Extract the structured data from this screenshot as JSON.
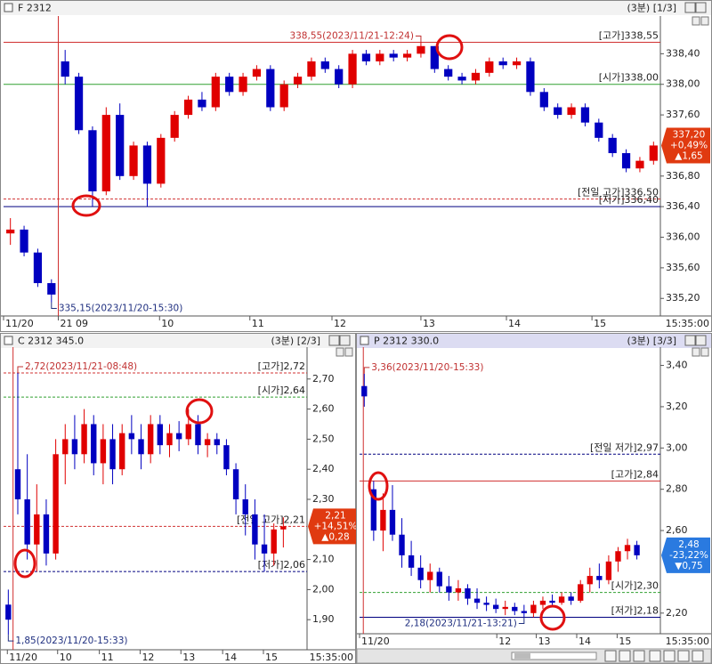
{
  "chart_data": [
    {
      "type": "candlestick",
      "title": "F 2312",
      "period": "(3분) [1/3]",
      "end_label": "15:35:00",
      "up_color": "#e00000",
      "down_color": "#0000c0",
      "xlim": [
        0,
        48
      ],
      "ylim": [
        334.97,
        338.87
      ],
      "xticks": [
        {
          "value": 0,
          "label": "11/20"
        },
        {
          "value": 4,
          "label": "21 09"
        },
        {
          "value": 11.4,
          "label": "10"
        },
        {
          "value": 18,
          "label": "11"
        },
        {
          "value": 24,
          "label": "12"
        },
        {
          "value": 30.5,
          "label": "13"
        },
        {
          "value": 36.75,
          "label": "14"
        },
        {
          "value": 43,
          "label": "15"
        }
      ],
      "yticks": [
        {
          "value": 338.4,
          "label": "338,40"
        },
        {
          "value": 338.0,
          "label": "338,00"
        },
        {
          "value": 337.6,
          "label": "337,60"
        },
        {
          "value": 336.8,
          "label": "336,80"
        },
        {
          "value": 336.4,
          "label": "336,40"
        },
        {
          "value": 336.0,
          "label": "336,00"
        },
        {
          "value": 335.6,
          "label": "335,60"
        },
        {
          "value": 335.2,
          "label": "335,20"
        }
      ],
      "vline": 4,
      "open": [
        336.05,
        336.1,
        335.8,
        335.4,
        338.3,
        338.1,
        337.4,
        336.6,
        337.6,
        336.8,
        337.2,
        336.7,
        337.3,
        337.6,
        337.8,
        337.7,
        338.1,
        337.9,
        338.1,
        338.2,
        337.7,
        338.0,
        338.1,
        338.3,
        338.2,
        338.0,
        338.4,
        338.3,
        338.4,
        338.35,
        338.4,
        338.5,
        338.2,
        338.1,
        338.05,
        338.15,
        338.3,
        338.25,
        338.3,
        337.9,
        337.7,
        337.6,
        337.7,
        337.5,
        337.3,
        337.1,
        336.9,
        337.0
      ],
      "high": [
        336.25,
        336.15,
        335.85,
        335.45,
        338.45,
        338.15,
        337.45,
        337.7,
        337.75,
        337.25,
        337.25,
        337.35,
        337.65,
        337.85,
        337.9,
        338.15,
        338.15,
        338.15,
        338.25,
        338.25,
        338.05,
        338.15,
        338.35,
        338.35,
        338.25,
        338.45,
        338.45,
        338.45,
        338.45,
        338.45,
        338.55,
        338.5,
        338.25,
        338.15,
        338.2,
        338.35,
        338.35,
        338.35,
        338.35,
        337.95,
        337.75,
        337.75,
        337.75,
        337.55,
        337.35,
        337.15,
        337.05,
        337.25
      ],
      "low": [
        335.9,
        335.75,
        335.35,
        335.15,
        338.0,
        337.35,
        336.4,
        336.55,
        336.75,
        336.75,
        336.4,
        336.65,
        337.25,
        337.55,
        337.65,
        337.65,
        337.85,
        337.85,
        338.05,
        337.65,
        337.65,
        337.95,
        338.05,
        338.15,
        337.95,
        337.95,
        338.25,
        338.25,
        338.3,
        338.3,
        338.35,
        338.15,
        338.05,
        338.0,
        338.0,
        338.1,
        338.2,
        338.2,
        337.85,
        337.65,
        337.55,
        337.55,
        337.45,
        337.25,
        337.05,
        336.85,
        336.85,
        336.95
      ],
      "close": [
        336.1,
        335.8,
        335.4,
        335.25,
        338.1,
        337.4,
        336.6,
        337.6,
        336.8,
        337.2,
        336.7,
        337.3,
        337.6,
        337.8,
        337.7,
        338.1,
        337.9,
        338.1,
        338.2,
        337.7,
        338.0,
        338.1,
        338.3,
        338.2,
        338.0,
        338.4,
        338.3,
        338.4,
        338.35,
        338.4,
        338.5,
        338.2,
        338.1,
        338.05,
        338.15,
        338.3,
        338.25,
        338.3,
        337.9,
        337.7,
        337.6,
        337.7,
        337.5,
        337.3,
        337.1,
        336.9,
        337.0,
        337.2
      ],
      "hlines": [
        {
          "value": 338.55,
          "label": "[고가]338,55",
          "color": "#d03030",
          "dash": false
        },
        {
          "value": 338.0,
          "label": "[시가]338,00",
          "color": "#30a030",
          "dash": false
        },
        {
          "value": 336.5,
          "label": "[전일 고가]336,50",
          "color": "#d03030",
          "dash": true
        },
        {
          "value": 336.4,
          "label": "[저가]336,40",
          "color": "#000080",
          "dash": false
        }
      ],
      "annotations": [
        {
          "label": "338,55(2023/11/21-12:24)",
          "value": 338.55,
          "x": 30
        },
        {
          "label": "335,15(2023/11/20-15:30)",
          "value": 335.15,
          "x": 3
        }
      ],
      "last": {
        "value": 337.2,
        "label": [
          "337,20",
          "+0,49%",
          "▲1,65"
        ],
        "color": "#e03a10"
      }
    },
    {
      "type": "candlestick",
      "title": "C 2312 345.0",
      "period": "(3분) [2/3]",
      "end_label": "15:35:00",
      "up_color": "#e00000",
      "down_color": "#0000c0",
      "xlim": [
        0,
        32
      ],
      "ylim": [
        1.8,
        2.8
      ],
      "xticks": [
        {
          "value": 0.4,
          "label": "11/20"
        },
        {
          "value": 5.7,
          "label": "10"
        },
        {
          "value": 10.1,
          "label": "11"
        },
        {
          "value": 14.4,
          "label": "12"
        },
        {
          "value": 18.7,
          "label": "13"
        },
        {
          "value": 23.1,
          "label": "14"
        },
        {
          "value": 27.4,
          "label": "15"
        }
      ],
      "yticks": [
        {
          "value": 2.7,
          "label": "2,70"
        },
        {
          "value": 2.6,
          "label": "2,60"
        },
        {
          "value": 2.5,
          "label": "2,50"
        },
        {
          "value": 2.4,
          "label": "2,40"
        },
        {
          "value": 2.3,
          "label": "2,30"
        },
        {
          "value": 2.1,
          "label": "2,10"
        },
        {
          "value": 2.0,
          "label": "2,00"
        },
        {
          "value": 1.9,
          "label": "1,90"
        }
      ],
      "vline": 1,
      "open": [
        1.95,
        2.4,
        2.3,
        2.15,
        2.25,
        2.12,
        2.45,
        2.5,
        2.45,
        2.55,
        2.42,
        2.5,
        2.4,
        2.52,
        2.5,
        2.45,
        2.55,
        2.48,
        2.52,
        2.5,
        2.55,
        2.48,
        2.5,
        2.48,
        2.4,
        2.3,
        2.25,
        2.15,
        2.12,
        2.2
      ],
      "high": [
        2.0,
        2.72,
        2.45,
        2.35,
        2.3,
        2.5,
        2.55,
        2.58,
        2.6,
        2.58,
        2.55,
        2.55,
        2.55,
        2.58,
        2.55,
        2.58,
        2.58,
        2.55,
        2.56,
        2.6,
        2.58,
        2.52,
        2.52,
        2.5,
        2.42,
        2.35,
        2.3,
        2.25,
        2.22,
        2.24
      ],
      "low": [
        1.85,
        2.25,
        2.1,
        2.06,
        2.08,
        2.1,
        2.35,
        2.4,
        2.42,
        2.38,
        2.35,
        2.35,
        2.38,
        2.45,
        2.4,
        2.42,
        2.45,
        2.44,
        2.46,
        2.48,
        2.45,
        2.44,
        2.45,
        2.38,
        2.25,
        2.18,
        2.1,
        2.06,
        2.08,
        2.14
      ],
      "close": [
        1.9,
        2.3,
        2.15,
        2.25,
        2.12,
        2.45,
        2.5,
        2.45,
        2.55,
        2.42,
        2.5,
        2.4,
        2.52,
        2.5,
        2.45,
        2.55,
        2.48,
        2.52,
        2.5,
        2.55,
        2.48,
        2.5,
        2.48,
        2.4,
        2.3,
        2.25,
        2.15,
        2.12,
        2.2,
        2.21
      ],
      "hlines": [
        {
          "value": 2.72,
          "label": "[고가]2,72",
          "color": "#d03030",
          "dash": true
        },
        {
          "value": 2.64,
          "label": "[시가]2,64",
          "color": "#30a030",
          "dash": true
        },
        {
          "value": 2.21,
          "label": "[전일 고가]2,21",
          "color": "#d03030",
          "dash": true
        },
        {
          "value": 2.06,
          "label": "[저가]2,06",
          "color": "#000080",
          "dash": true
        }
      ],
      "annotations": [
        {
          "label": "2,72(2023/11/21-08:48)",
          "value": 2.72,
          "x": 1
        },
        {
          "label": "1,85(2023/11/20-15:33)",
          "value": 1.85,
          "x": 0
        }
      ],
      "last": {
        "value": 2.21,
        "label": [
          "2,21",
          "+14,51%",
          "▲0,28"
        ],
        "color": "#e03a10"
      }
    },
    {
      "type": "candlestick",
      "title": "P 2312 330.0",
      "period": "(3분) [3/3]",
      "end_label": "15:35:00",
      "up_color": "#e00000",
      "down_color": "#0000c0",
      "xlim": [
        0,
        32
      ],
      "ylim": [
        2.1,
        3.48
      ],
      "xticks": [
        {
          "value": 0,
          "label": "11/20"
        },
        {
          "value": 14.6,
          "label": "12"
        },
        {
          "value": 18.8,
          "label": "13"
        },
        {
          "value": 23.1,
          "label": "14"
        },
        {
          "value": 27.4,
          "label": "15"
        }
      ],
      "yticks": [
        {
          "value": 3.4,
          "label": "3,40"
        },
        {
          "value": 3.2,
          "label": "3,20"
        },
        {
          "value": 3.0,
          "label": "3,00"
        },
        {
          "value": 2.8,
          "label": "2,80"
        },
        {
          "value": 2.6,
          "label": "2,60"
        },
        {
          "value": 2.2,
          "label": "2,20"
        }
      ],
      "vline": 0.4,
      "open": [
        3.3,
        2.8,
        2.6,
        2.7,
        2.58,
        2.48,
        2.42,
        2.36,
        2.4,
        2.33,
        2.3,
        2.32,
        2.27,
        2.25,
        2.24,
        2.22,
        2.23,
        2.21,
        2.2,
        2.24,
        2.26,
        2.25,
        2.28,
        2.26,
        2.34,
        2.38,
        2.36,
        2.45,
        2.5,
        2.53
      ],
      "high": [
        3.36,
        2.84,
        2.78,
        2.82,
        2.66,
        2.55,
        2.48,
        2.44,
        2.42,
        2.38,
        2.36,
        2.34,
        2.32,
        2.28,
        2.27,
        2.26,
        2.25,
        2.24,
        2.26,
        2.28,
        2.29,
        2.3,
        2.3,
        2.36,
        2.42,
        2.44,
        2.48,
        2.52,
        2.56,
        2.55
      ],
      "low": [
        3.2,
        2.55,
        2.5,
        2.55,
        2.42,
        2.38,
        2.32,
        2.3,
        2.3,
        2.26,
        2.26,
        2.24,
        2.22,
        2.21,
        2.2,
        2.19,
        2.19,
        2.18,
        2.18,
        2.22,
        2.23,
        2.24,
        2.24,
        2.25,
        2.3,
        2.32,
        2.34,
        2.4,
        2.46,
        2.46
      ],
      "close": [
        3.25,
        2.6,
        2.7,
        2.58,
        2.48,
        2.42,
        2.36,
        2.4,
        2.33,
        2.3,
        2.32,
        2.27,
        2.25,
        2.24,
        2.22,
        2.23,
        2.21,
        2.2,
        2.24,
        2.26,
        2.25,
        2.28,
        2.26,
        2.34,
        2.38,
        2.36,
        2.45,
        2.5,
        2.53,
        2.48
      ],
      "hlines": [
        {
          "value": 2.97,
          "label": "[전일 저가]2,97",
          "color": "#000080",
          "dash": true
        },
        {
          "value": 2.84,
          "label": "[고가]2,84",
          "color": "#d03030",
          "dash": false
        },
        {
          "value": 2.3,
          "label": "[시가]2,30",
          "color": "#30a030",
          "dash": true
        },
        {
          "value": 2.18,
          "label": "[저가]2,18",
          "color": "#000080",
          "dash": false
        }
      ],
      "annotations": [
        {
          "label": "3,36(2023/11/20-15:33)",
          "value": 3.36,
          "x": 0
        },
        {
          "label": "2,18(2023/11/21-13:21)",
          "value": 2.18,
          "x": 17
        }
      ],
      "last": {
        "value": 2.48,
        "label": [
          "2,48",
          "-23,22%",
          "▼0,75"
        ],
        "color": "#2a7ae0"
      }
    }
  ]
}
